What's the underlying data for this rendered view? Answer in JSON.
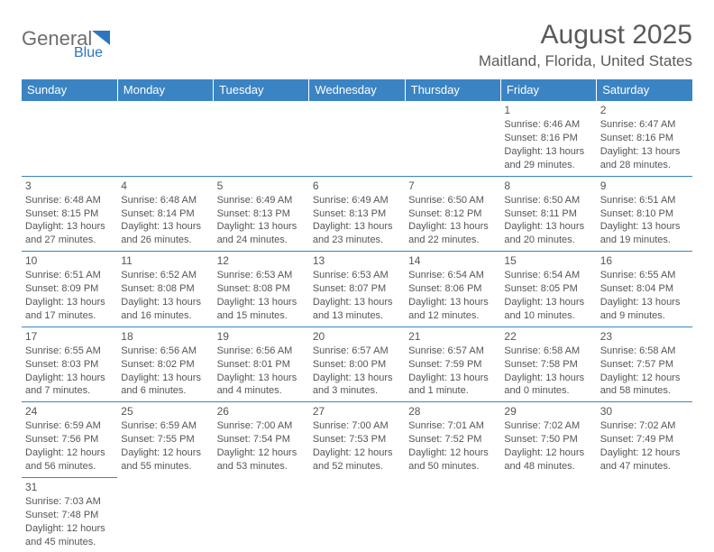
{
  "logo": {
    "text1": "General",
    "text2": "Blue"
  },
  "title": "August 2025",
  "location": "Maitland, Florida, United States",
  "columns": [
    "Sunday",
    "Monday",
    "Tuesday",
    "Wednesday",
    "Thursday",
    "Friday",
    "Saturday"
  ],
  "colors": {
    "header_bg": "#3b84c4",
    "header_text": "#ffffff",
    "cell_border": "#3b84c4",
    "text": "#555555",
    "title_text": "#5a5a5a",
    "logo_gray": "#6d6d6d",
    "logo_blue": "#2e75c0"
  },
  "weeks": [
    [
      null,
      null,
      null,
      null,
      null,
      {
        "n": "1",
        "sr": "Sunrise: 6:46 AM",
        "ss": "Sunset: 8:16 PM",
        "dl": "Daylight: 13 hours and 29 minutes."
      },
      {
        "n": "2",
        "sr": "Sunrise: 6:47 AM",
        "ss": "Sunset: 8:16 PM",
        "dl": "Daylight: 13 hours and 28 minutes."
      }
    ],
    [
      {
        "n": "3",
        "sr": "Sunrise: 6:48 AM",
        "ss": "Sunset: 8:15 PM",
        "dl": "Daylight: 13 hours and 27 minutes."
      },
      {
        "n": "4",
        "sr": "Sunrise: 6:48 AM",
        "ss": "Sunset: 8:14 PM",
        "dl": "Daylight: 13 hours and 26 minutes."
      },
      {
        "n": "5",
        "sr": "Sunrise: 6:49 AM",
        "ss": "Sunset: 8:13 PM",
        "dl": "Daylight: 13 hours and 24 minutes."
      },
      {
        "n": "6",
        "sr": "Sunrise: 6:49 AM",
        "ss": "Sunset: 8:13 PM",
        "dl": "Daylight: 13 hours and 23 minutes."
      },
      {
        "n": "7",
        "sr": "Sunrise: 6:50 AM",
        "ss": "Sunset: 8:12 PM",
        "dl": "Daylight: 13 hours and 22 minutes."
      },
      {
        "n": "8",
        "sr": "Sunrise: 6:50 AM",
        "ss": "Sunset: 8:11 PM",
        "dl": "Daylight: 13 hours and 20 minutes."
      },
      {
        "n": "9",
        "sr": "Sunrise: 6:51 AM",
        "ss": "Sunset: 8:10 PM",
        "dl": "Daylight: 13 hours and 19 minutes."
      }
    ],
    [
      {
        "n": "10",
        "sr": "Sunrise: 6:51 AM",
        "ss": "Sunset: 8:09 PM",
        "dl": "Daylight: 13 hours and 17 minutes."
      },
      {
        "n": "11",
        "sr": "Sunrise: 6:52 AM",
        "ss": "Sunset: 8:08 PM",
        "dl": "Daylight: 13 hours and 16 minutes."
      },
      {
        "n": "12",
        "sr": "Sunrise: 6:53 AM",
        "ss": "Sunset: 8:08 PM",
        "dl": "Daylight: 13 hours and 15 minutes."
      },
      {
        "n": "13",
        "sr": "Sunrise: 6:53 AM",
        "ss": "Sunset: 8:07 PM",
        "dl": "Daylight: 13 hours and 13 minutes."
      },
      {
        "n": "14",
        "sr": "Sunrise: 6:54 AM",
        "ss": "Sunset: 8:06 PM",
        "dl": "Daylight: 13 hours and 12 minutes."
      },
      {
        "n": "15",
        "sr": "Sunrise: 6:54 AM",
        "ss": "Sunset: 8:05 PM",
        "dl": "Daylight: 13 hours and 10 minutes."
      },
      {
        "n": "16",
        "sr": "Sunrise: 6:55 AM",
        "ss": "Sunset: 8:04 PM",
        "dl": "Daylight: 13 hours and 9 minutes."
      }
    ],
    [
      {
        "n": "17",
        "sr": "Sunrise: 6:55 AM",
        "ss": "Sunset: 8:03 PM",
        "dl": "Daylight: 13 hours and 7 minutes."
      },
      {
        "n": "18",
        "sr": "Sunrise: 6:56 AM",
        "ss": "Sunset: 8:02 PM",
        "dl": "Daylight: 13 hours and 6 minutes."
      },
      {
        "n": "19",
        "sr": "Sunrise: 6:56 AM",
        "ss": "Sunset: 8:01 PM",
        "dl": "Daylight: 13 hours and 4 minutes."
      },
      {
        "n": "20",
        "sr": "Sunrise: 6:57 AM",
        "ss": "Sunset: 8:00 PM",
        "dl": "Daylight: 13 hours and 3 minutes."
      },
      {
        "n": "21",
        "sr": "Sunrise: 6:57 AM",
        "ss": "Sunset: 7:59 PM",
        "dl": "Daylight: 13 hours and 1 minute."
      },
      {
        "n": "22",
        "sr": "Sunrise: 6:58 AM",
        "ss": "Sunset: 7:58 PM",
        "dl": "Daylight: 13 hours and 0 minutes."
      },
      {
        "n": "23",
        "sr": "Sunrise: 6:58 AM",
        "ss": "Sunset: 7:57 PM",
        "dl": "Daylight: 12 hours and 58 minutes."
      }
    ],
    [
      {
        "n": "24",
        "sr": "Sunrise: 6:59 AM",
        "ss": "Sunset: 7:56 PM",
        "dl": "Daylight: 12 hours and 56 minutes."
      },
      {
        "n": "25",
        "sr": "Sunrise: 6:59 AM",
        "ss": "Sunset: 7:55 PM",
        "dl": "Daylight: 12 hours and 55 minutes."
      },
      {
        "n": "26",
        "sr": "Sunrise: 7:00 AM",
        "ss": "Sunset: 7:54 PM",
        "dl": "Daylight: 12 hours and 53 minutes."
      },
      {
        "n": "27",
        "sr": "Sunrise: 7:00 AM",
        "ss": "Sunset: 7:53 PM",
        "dl": "Daylight: 12 hours and 52 minutes."
      },
      {
        "n": "28",
        "sr": "Sunrise: 7:01 AM",
        "ss": "Sunset: 7:52 PM",
        "dl": "Daylight: 12 hours and 50 minutes."
      },
      {
        "n": "29",
        "sr": "Sunrise: 7:02 AM",
        "ss": "Sunset: 7:50 PM",
        "dl": "Daylight: 12 hours and 48 minutes."
      },
      {
        "n": "30",
        "sr": "Sunrise: 7:02 AM",
        "ss": "Sunset: 7:49 PM",
        "dl": "Daylight: 12 hours and 47 minutes."
      }
    ],
    [
      {
        "n": "31",
        "sr": "Sunrise: 7:03 AM",
        "ss": "Sunset: 7:48 PM",
        "dl": "Daylight: 12 hours and 45 minutes."
      },
      null,
      null,
      null,
      null,
      null,
      null
    ]
  ]
}
